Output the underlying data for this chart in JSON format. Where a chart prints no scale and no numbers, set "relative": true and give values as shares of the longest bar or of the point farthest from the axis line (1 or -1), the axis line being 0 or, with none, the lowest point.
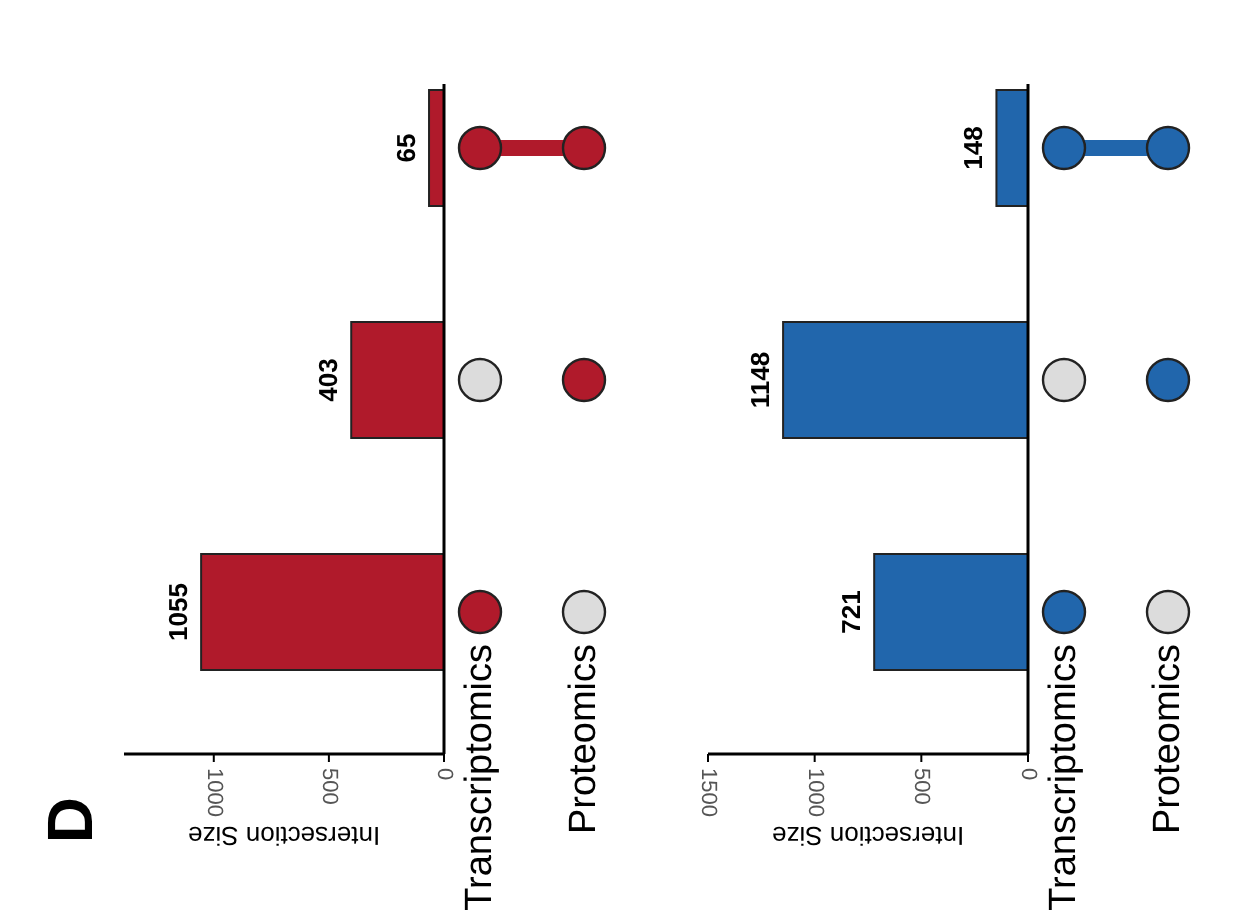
{
  "chart_data": [
    {
      "type": "bar",
      "orientation": "horizontal",
      "categories": [
        null,
        null,
        null
      ],
      "values": [
        65,
        403,
        1055
      ],
      "color": "#b01a2b",
      "xlim": [
        1390,
        0
      ],
      "xticks": [
        0,
        500,
        1000
      ],
      "xlabel": "Intersection Size",
      "data_labels": true,
      "annotations": [
        "D"
      ]
    },
    {
      "type": "scatter",
      "relative": true,
      "categories": [
        "Transcriptomics",
        "Proteomics"
      ],
      "series": [
        {
          "type": "line",
          "color": "#b01a2b",
          "x": [
            "Transcriptomics",
            "Proteomics"
          ],
          "values": [
            1,
            1
          ]
        },
        {
          "color": "#b01a2b",
          "x": [
            "Transcriptomics",
            "Proteomics",
            "Proteomics",
            "Transcriptomics"
          ],
          "values": [
            1,
            1,
            0.5,
            0
          ]
        },
        {
          "color": "#dcdcdc",
          "x": [
            "Transcriptomics",
            "Proteomics"
          ],
          "values": [
            0.5,
            0
          ]
        }
      ]
    },
    {
      "type": "bar",
      "orientation": "horizontal",
      "categories": [
        null,
        null,
        null
      ],
      "values": [
        148,
        1148,
        721
      ],
      "color": "#2166ac",
      "xlim": [
        1500,
        0
      ],
      "xticks": [
        0,
        500,
        1000,
        1500
      ],
      "xlabel": "Intersection Size",
      "data_labels": true
    },
    {
      "type": "scatter",
      "relative": true,
      "categories": [
        "Transcriptomics",
        "Proteomics"
      ],
      "series": [
        {
          "type": "line",
          "color": "#2166ac",
          "x": [
            "Transcriptomics",
            "Proteomics"
          ],
          "values": [
            1,
            1
          ]
        },
        {
          "color": "#2166ac",
          "x": [
            "Transcriptomics",
            "Proteomics",
            "Proteomics",
            "Transcriptomics"
          ],
          "values": [
            1,
            1,
            0.5,
            0
          ]
        },
        {
          "color": "#dcdcdc",
          "x": [
            "Transcriptomics",
            "Proteomics"
          ],
          "values": [
            0.5,
            0
          ]
        }
      ]
    }
  ]
}
